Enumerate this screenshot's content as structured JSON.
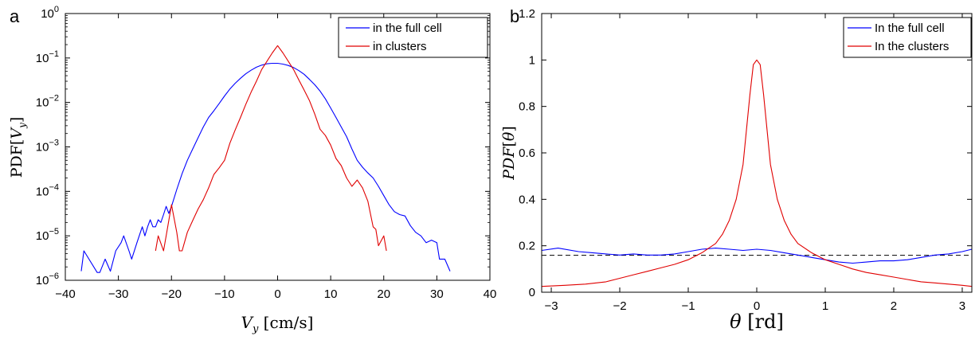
{
  "chart_data": [
    {
      "type": "line",
      "panel_label": "a",
      "xlabel": "V_y [cm/s]",
      "ylabel": "PDF[V_y]",
      "xlim": [
        -40,
        40
      ],
      "ylim": [
        1e-06,
        1
      ],
      "yscale": "log",
      "grid": false,
      "legend_position": "top-right",
      "xticks": [
        -40,
        -30,
        -20,
        -10,
        0,
        10,
        20,
        30,
        40
      ],
      "yticks": [
        {
          "value": 1e-06,
          "exp": "-6"
        },
        {
          "value": 1e-05,
          "exp": "-5"
        },
        {
          "value": 0.0001,
          "exp": "-4"
        },
        {
          "value": 0.001,
          "exp": "-3"
        },
        {
          "value": 0.01,
          "exp": "-2"
        },
        {
          "value": 0.1,
          "exp": "-1"
        },
        {
          "value": 1,
          "exp": "0"
        }
      ],
      "series": [
        {
          "name": "in the full cell",
          "color": "#0000ff",
          "x": [
            -37,
            -36.5,
            -34,
            -33.5,
            -32.5,
            -31.5,
            -30.5,
            -29.5,
            -29,
            -28,
            -27.5,
            -26.5,
            -25.5,
            -25,
            -24.5,
            -24,
            -23.5,
            -23,
            -22.5,
            -22,
            -21.5,
            -21,
            -20.5,
            -20,
            -19,
            -18,
            -17,
            -16,
            -15,
            -14,
            -13,
            -12,
            -11,
            -10,
            -9,
            -8,
            -7,
            -6,
            -5,
            -4,
            -3,
            -2,
            -1,
            0,
            1,
            2,
            3,
            4,
            5,
            6,
            7,
            8,
            9,
            10,
            11,
            12,
            13,
            14,
            15,
            16,
            17,
            18,
            19,
            20,
            21,
            22,
            23,
            24,
            25,
            26,
            27,
            28,
            29,
            30,
            30.5,
            31.5,
            32.5
          ],
          "y": [
            1.6e-06,
            4.6e-06,
            1.5e-06,
            1.5e-06,
            3e-06,
            1.6e-06,
            4.6e-06,
            7e-06,
            1e-05,
            4.6e-06,
            3e-06,
            7e-06,
            1.6e-05,
            1e-05,
            1.6e-05,
            2.3e-05,
            1.6e-05,
            1.6e-05,
            2.3e-05,
            2e-05,
            3e-05,
            4.6e-05,
            3.2e-05,
            4.6e-05,
            0.00011,
            0.00025,
            0.0005,
            0.0009,
            0.0016,
            0.0028,
            0.0046,
            0.0065,
            0.0095,
            0.014,
            0.02,
            0.027,
            0.035,
            0.044,
            0.053,
            0.062,
            0.069,
            0.074,
            0.076,
            0.076,
            0.073,
            0.068,
            0.061,
            0.052,
            0.043,
            0.033,
            0.025,
            0.018,
            0.012,
            0.0075,
            0.0046,
            0.0028,
            0.0017,
            0.0009,
            0.0005,
            0.00035,
            0.00026,
            0.0002,
            0.00013,
            8e-05,
            5e-05,
            3.5e-05,
            3e-05,
            2.8e-05,
            1.7e-05,
            1.2e-05,
            1e-05,
            7e-06,
            8e-06,
            7e-06,
            3e-06,
            3e-06,
            1.6e-06
          ]
        },
        {
          "name": "in clusters",
          "color": "#e00000",
          "x": [
            -23,
            -22.5,
            -21.5,
            -21,
            -20,
            -19,
            -18.5,
            -18,
            -17,
            -16,
            -15,
            -14,
            -13,
            -12,
            -11,
            -10,
            -9,
            -8,
            -7,
            -6,
            -5,
            -4,
            -3,
            -2,
            -1,
            0,
            1,
            2,
            3,
            4,
            5,
            6,
            7,
            8,
            9,
            10,
            11,
            12,
            13,
            14,
            15,
            16,
            17,
            18,
            18.5,
            19,
            20,
            20.5
          ],
          "y": [
            4.6e-06,
            1e-05,
            4.6e-06,
            1e-05,
            5e-05,
            1.2e-05,
            4.6e-06,
            4.6e-06,
            1.2e-05,
            2.2e-05,
            4e-05,
            6.5e-05,
            0.00012,
            0.00024,
            0.00034,
            0.0005,
            0.0012,
            0.0024,
            0.0046,
            0.009,
            0.017,
            0.03,
            0.055,
            0.085,
            0.13,
            0.19,
            0.13,
            0.085,
            0.055,
            0.032,
            0.019,
            0.011,
            0.0055,
            0.0025,
            0.0018,
            0.0011,
            0.00055,
            0.00038,
            0.0002,
            0.00013,
            0.00018,
            0.00012,
            6e-05,
            1.6e-05,
            1.4e-05,
            6e-06,
            1e-05,
            4.6e-06
          ]
        }
      ]
    },
    {
      "type": "line",
      "panel_label": "b",
      "xlabel": "θ [rd]",
      "ylabel": "PDF[θ]",
      "xlim": [
        -3.14,
        3.14
      ],
      "ylim": [
        0,
        1.2
      ],
      "grid": false,
      "legend_position": "top-right",
      "xticks": [
        "-3",
        "-2",
        "-1",
        "0",
        "1",
        "2",
        "3"
      ],
      "yticks": [
        "0",
        "0.2",
        "0.4",
        "0.6",
        "0.8",
        "1",
        "1.2"
      ],
      "reference_line": {
        "y": 0.159,
        "style": "dashed",
        "color": "#000000"
      },
      "series": [
        {
          "name": "In the full cell",
          "color": "#0000ff",
          "x": [
            -3.14,
            -2.9,
            -2.6,
            -2.4,
            -2.2,
            -2.0,
            -1.8,
            -1.6,
            -1.4,
            -1.2,
            -1.0,
            -0.8,
            -0.6,
            -0.4,
            -0.2,
            0,
            0.2,
            0.4,
            0.6,
            0.8,
            1.0,
            1.2,
            1.4,
            1.6,
            1.8,
            2.0,
            2.2,
            2.4,
            2.6,
            2.8,
            3.0,
            3.14
          ],
          "y": [
            0.18,
            0.19,
            0.175,
            0.17,
            0.165,
            0.16,
            0.165,
            0.16,
            0.16,
            0.165,
            0.175,
            0.185,
            0.19,
            0.185,
            0.18,
            0.185,
            0.18,
            0.17,
            0.16,
            0.15,
            0.14,
            0.13,
            0.125,
            0.13,
            0.135,
            0.135,
            0.14,
            0.15,
            0.16,
            0.165,
            0.175,
            0.185
          ]
        },
        {
          "name": "In the clusters",
          "color": "#e00000",
          "x": [
            -3.14,
            -2.8,
            -2.5,
            -2.2,
            -2.0,
            -1.8,
            -1.6,
            -1.4,
            -1.2,
            -1.0,
            -0.8,
            -0.6,
            -0.5,
            -0.4,
            -0.3,
            -0.2,
            -0.15,
            -0.1,
            -0.05,
            0,
            0.05,
            0.1,
            0.15,
            0.2,
            0.3,
            0.4,
            0.5,
            0.6,
            0.8,
            1.0,
            1.2,
            1.4,
            1.6,
            1.8,
            2.0,
            2.2,
            2.4,
            2.6,
            2.8,
            3.0,
            3.14
          ],
          "y": [
            0.025,
            0.03,
            0.035,
            0.045,
            0.06,
            0.075,
            0.09,
            0.105,
            0.12,
            0.14,
            0.17,
            0.21,
            0.25,
            0.31,
            0.4,
            0.55,
            0.7,
            0.85,
            0.98,
            1.0,
            0.98,
            0.85,
            0.7,
            0.55,
            0.4,
            0.31,
            0.25,
            0.21,
            0.17,
            0.14,
            0.12,
            0.1,
            0.085,
            0.075,
            0.065,
            0.055,
            0.045,
            0.04,
            0.035,
            0.03,
            0.025
          ]
        }
      ]
    }
  ]
}
